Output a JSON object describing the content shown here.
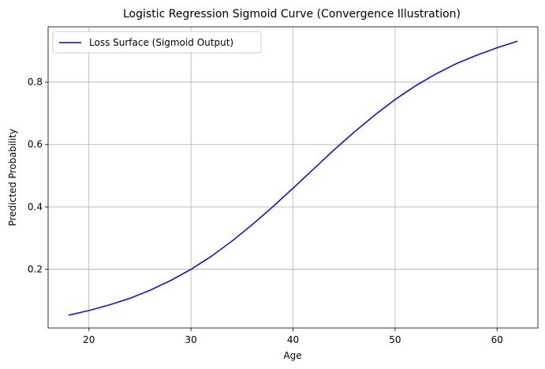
{
  "chart_data": {
    "type": "line",
    "title": "Logistic Regression Sigmoid Curve (Convergence Illustration)",
    "xlabel": "Age",
    "ylabel": "Predicted Probability",
    "xlim": [
      16.0,
      64.0
    ],
    "ylim": [
      0.012,
      0.977
    ],
    "xticks": [
      20,
      30,
      40,
      50,
      60
    ],
    "xtick_labels": [
      "20",
      "30",
      "40",
      "50",
      "60"
    ],
    "yticks": [
      0.2,
      0.4,
      0.6,
      0.8
    ],
    "ytick_labels": [
      "0.2",
      "0.4",
      "0.6",
      "0.8"
    ],
    "grid": true,
    "legend_position": "top-left",
    "series": [
      {
        "name": "Loss Surface (Sigmoid Output)",
        "color": "#0000ff",
        "x": [
          18,
          20,
          22,
          24,
          26,
          28,
          30,
          32,
          34,
          36,
          38,
          40,
          42,
          44,
          46,
          48,
          50,
          52,
          54,
          56,
          58,
          60,
          62
        ],
        "y": [
          0.053,
          0.068,
          0.086,
          0.107,
          0.133,
          0.164,
          0.2,
          0.242,
          0.29,
          0.343,
          0.4,
          0.46,
          0.521,
          0.582,
          0.64,
          0.694,
          0.744,
          0.788,
          0.826,
          0.859,
          0.886,
          0.91,
          0.931
        ]
      }
    ]
  }
}
